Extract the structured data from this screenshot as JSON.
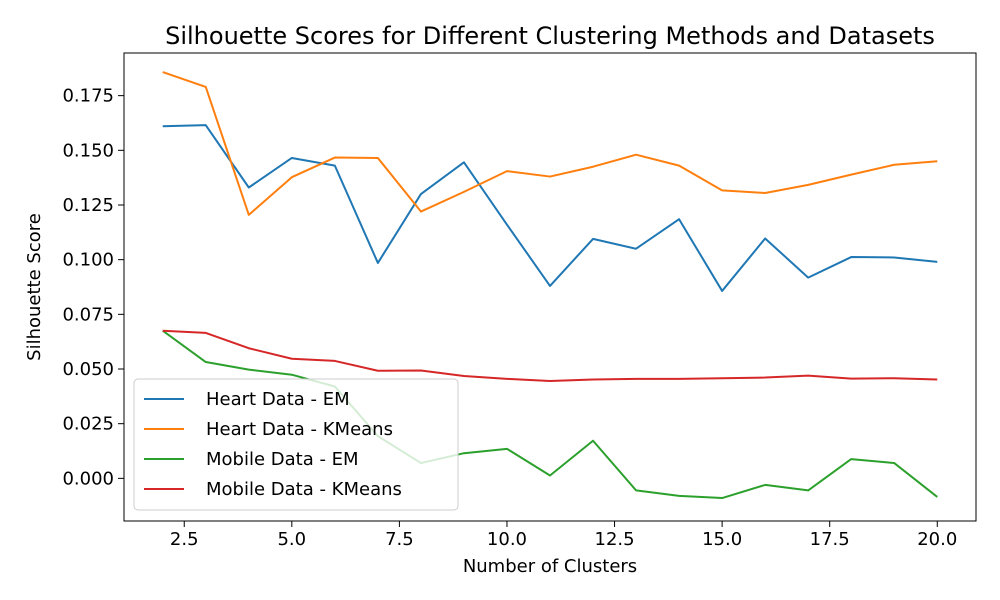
{
  "chart_data": {
    "type": "line",
    "title": "Silhouette Scores for Different Clustering Methods and Datasets",
    "xlabel": "Number of Clusters",
    "ylabel": "Silhouette Score",
    "xlim": [
      1.1,
      20.9
    ],
    "ylim": [
      -0.0195,
      0.1945
    ],
    "xticks": [
      2.5,
      5.0,
      7.5,
      10.0,
      12.5,
      15.0,
      17.5,
      20.0
    ],
    "xtick_labels": [
      "2.5",
      "5.0",
      "7.5",
      "10.0",
      "12.5",
      "15.0",
      "17.5",
      "20.0"
    ],
    "yticks": [
      0.0,
      0.025,
      0.05,
      0.075,
      0.1,
      0.125,
      0.15,
      0.175
    ],
    "ytick_labels": [
      "0.000",
      "0.025",
      "0.050",
      "0.075",
      "0.100",
      "0.125",
      "0.150",
      "0.175"
    ],
    "grid": false,
    "legend_position": "lower-left",
    "x": [
      2,
      3,
      4,
      5,
      6,
      7,
      8,
      9,
      10,
      11,
      12,
      13,
      14,
      15,
      16,
      17,
      18,
      19,
      20
    ],
    "series": [
      {
        "name": "Heart Data - EM",
        "color": "#1f77b4",
        "values": [
          0.161,
          0.1615,
          0.133,
          0.1465,
          0.143,
          0.0985,
          0.13,
          0.1445,
          0.116,
          0.088,
          0.1095,
          0.105,
          0.1185,
          0.0857,
          0.1097,
          0.0918,
          0.1012,
          0.101,
          0.099
        ]
      },
      {
        "name": "Heart Data - KMeans",
        "color": "#ff7f0e",
        "values": [
          0.1858,
          0.179,
          0.1205,
          0.1377,
          0.1467,
          0.1465,
          0.122,
          0.131,
          0.1405,
          0.138,
          0.1425,
          0.148,
          0.143,
          0.1317,
          0.1305,
          0.1342,
          0.1389,
          0.1434,
          0.145
        ]
      },
      {
        "name": "Mobile Data - EM",
        "color": "#2ca02c",
        "values": [
          0.0675,
          0.0532,
          0.0497,
          0.0474,
          0.042,
          0.0193,
          0.007,
          0.0115,
          0.0135,
          0.0013,
          0.0172,
          -0.0055,
          -0.008,
          -0.009,
          -0.003,
          -0.0055,
          0.0088,
          0.007,
          -0.0085
        ]
      },
      {
        "name": "Mobile Data - KMeans",
        "color": "#d62728",
        "values": [
          0.0675,
          0.0665,
          0.0595,
          0.0547,
          0.0537,
          0.0492,
          0.0493,
          0.0468,
          0.0455,
          0.0445,
          0.0452,
          0.0455,
          0.0455,
          0.0458,
          0.0461,
          0.047,
          0.0456,
          0.0458,
          0.0452
        ]
      }
    ]
  }
}
